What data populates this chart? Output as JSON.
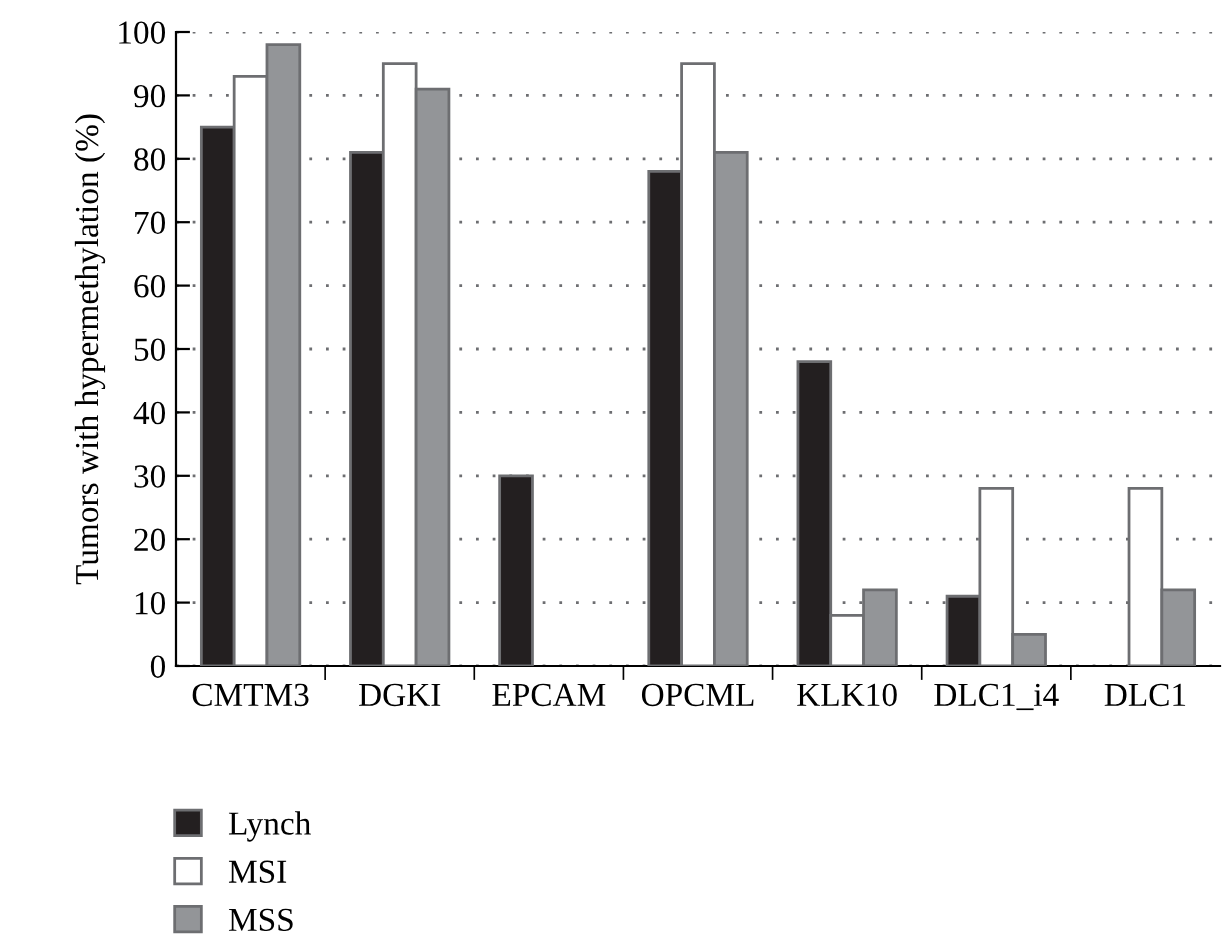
{
  "chart_data": {
    "type": "bar",
    "ylabel": "Tumors with hypermethylation (%)",
    "categories": [
      "CMTM3",
      "DGKI",
      "EPCAM",
      "OPCML",
      "KLK10",
      "DLC1_i4",
      "DLC1"
    ],
    "series": [
      {
        "name": "Lynch",
        "color": "#231f20",
        "values": [
          85,
          81,
          30,
          78,
          48,
          11,
          null
        ]
      },
      {
        "name": "MSI",
        "color": "#ffffff",
        "values": [
          93,
          95,
          null,
          95,
          8,
          28,
          28
        ]
      },
      {
        "name": "MSS",
        "color": "#939598",
        "values": [
          98,
          91,
          null,
          81,
          12,
          5,
          12
        ]
      }
    ],
    "ylim": [
      0,
      100
    ],
    "yticks": [
      0,
      10,
      20,
      30,
      40,
      50,
      60,
      70,
      80,
      90,
      100
    ],
    "grid": "y",
    "legend": "bottom left"
  }
}
